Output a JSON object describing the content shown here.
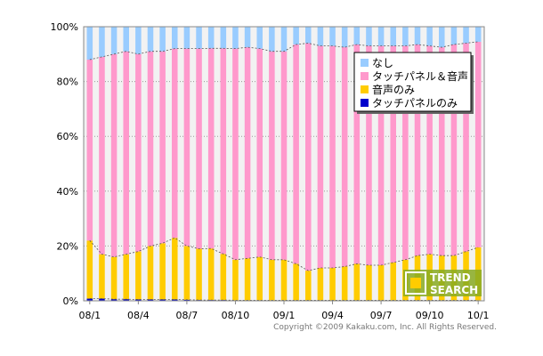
{
  "chart_data": {
    "type": "bar",
    "stacked": true,
    "percent": true,
    "title": "",
    "xlabel": "",
    "ylabel": "",
    "ylim": [
      0,
      100
    ],
    "grid": true,
    "legend_position": "top-right",
    "y_tick_labels": [
      "0%",
      "20%",
      "40%",
      "60%",
      "80%",
      "100%"
    ],
    "x_tick_labels": [
      "08/1",
      "08/4",
      "08/7",
      "08/10",
      "09/1",
      "09/4",
      "09/7",
      "09/10",
      "10/1"
    ],
    "x_tick_positions": [
      0,
      4,
      8,
      12,
      16,
      20,
      24,
      28,
      32
    ],
    "categories_count": 33,
    "series": [
      {
        "name": "タッチパネルのみ",
        "color": "#0000cc",
        "values": [
          0.8,
          0.8,
          0.6,
          0.6,
          0.5,
          0.5,
          0.5,
          0.5,
          0.4,
          0.3,
          0.3,
          0.3,
          0.2,
          0.2,
          0.2,
          0.2,
          0.2,
          0.2,
          0.2,
          0.2,
          0.2,
          0.2,
          0.2,
          0.2,
          0.2,
          0.2,
          0.2,
          0.2,
          0.2,
          0.2,
          0.2,
          0.2,
          0.2
        ]
      },
      {
        "name": "音声のみ",
        "color": "#ffcc00",
        "values": [
          21.2,
          16.2,
          15.4,
          16.4,
          17.5,
          19.5,
          20.5,
          22.5,
          19.6,
          18.7,
          18.8,
          16.8,
          14.8,
          15.3,
          15.8,
          14.8,
          14.8,
          13.3,
          10.8,
          11.8,
          11.8,
          12.3,
          13.3,
          12.8,
          12.8,
          13.8,
          14.8,
          16.3,
          16.8,
          16.3,
          16.3,
          17.8,
          19.3
        ]
      },
      {
        "name": "タッチパネル＆音声",
        "color": "#ff99cc",
        "values": [
          66.0,
          72.0,
          74.0,
          74.0,
          72.0,
          71.0,
          70.0,
          69.0,
          72.0,
          73.0,
          73.0,
          75.0,
          77.0,
          77.0,
          76.0,
          76.0,
          76.0,
          80.0,
          83.0,
          81.0,
          81.0,
          80.0,
          80.0,
          80.0,
          80.0,
          79.0,
          78.0,
          77.0,
          76.0,
          76.0,
          77.0,
          76.0,
          75.0
        ]
      },
      {
        "name": "なし",
        "color": "#99ccff",
        "values": [
          12.0,
          11.0,
          10.0,
          9.0,
          10.0,
          9.0,
          9.0,
          8.0,
          8.0,
          8.0,
          7.9,
          7.9,
          8.0,
          7.5,
          8.0,
          9.0,
          9.0,
          6.5,
          6.0,
          7.0,
          7.0,
          7.5,
          6.5,
          7.0,
          7.0,
          7.0,
          7.0,
          6.5,
          7.0,
          7.5,
          6.5,
          6.0,
          5.5
        ]
      }
    ],
    "legend_order": [
      "なし",
      "タッチパネル＆音声",
      "音声のみ",
      "タッチパネルのみ"
    ]
  },
  "logo": {
    "line1": "TREND",
    "line2": "SEARCH"
  },
  "copyright": "Copyright ©2009 Kakaku.com, Inc. All Rights Reserved."
}
